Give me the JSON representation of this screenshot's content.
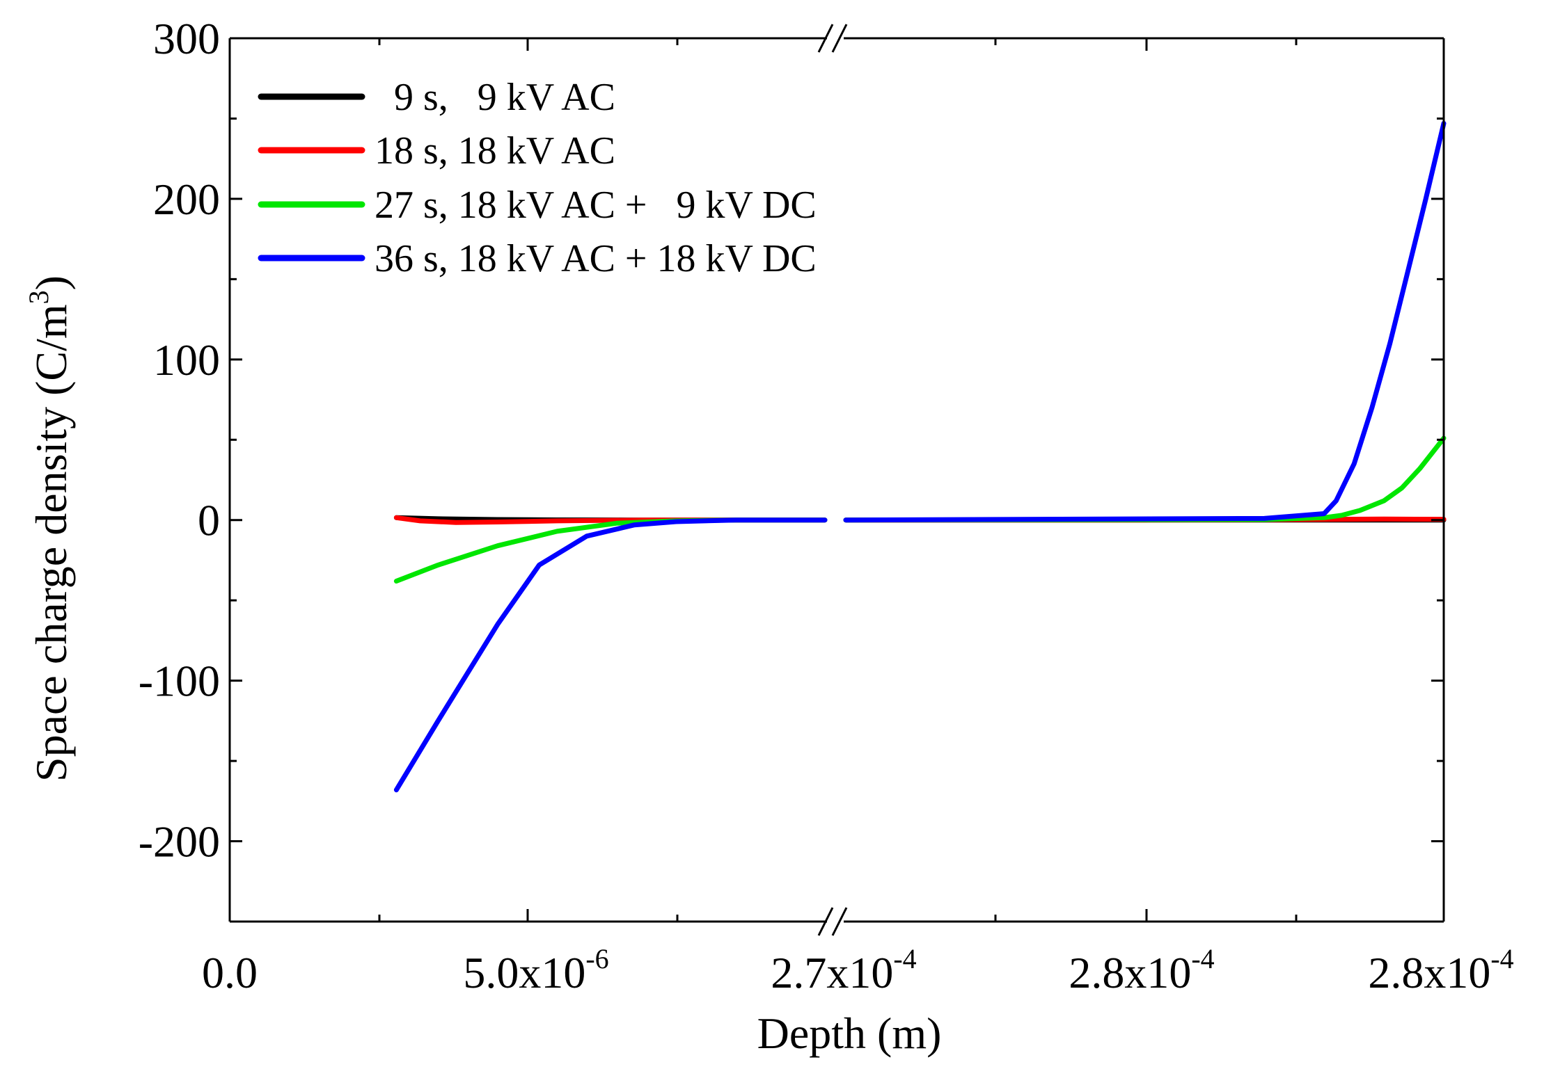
{
  "chart_data": {
    "type": "line",
    "title": "",
    "xlabel": "Depth (m)",
    "ylabel": "Space charge density (C/m",
    "ylabel_sup": "3",
    "ylabel_close": ")",
    "ylim": [
      -250,
      300
    ],
    "yticks": [
      -200,
      -100,
      0,
      100,
      200,
      300
    ],
    "ytick_labels": [
      "-200",
      "-100",
      "0",
      "100",
      "200",
      "300"
    ],
    "axis_break": "broken x-axis between the left and right segments",
    "xtick_labels": [
      {
        "base": "0.0",
        "exp": ""
      },
      {
        "base": "5.0x10",
        "exp": "-6"
      },
      {
        "base": "2.7x10",
        "exp": "-4"
      },
      {
        "base": "2.8x10",
        "exp": "-4"
      },
      {
        "base": "2.8x10",
        "exp": "-4"
      }
    ],
    "segments": [
      {
        "name": "left",
        "xlim": [
          0,
          1e-05
        ]
      },
      {
        "name": "right",
        "xlim": [
          0.00027,
          0.00028
        ]
      }
    ],
    "legend_position": "top-left",
    "series": [
      {
        "name": "9 s, 9 kV AC",
        "legend_label": "  9 s,   9 kV AC",
        "color": "#000000",
        "left": {
          "x": [
            2.8e-06,
            3.5e-06,
            4.5e-06,
            5.5e-06,
            7e-06,
            8.5e-06,
            1e-05
          ],
          "y": [
            1.5,
            0.8,
            0.3,
            0.1,
            0,
            0,
            0
          ]
        },
        "right": {
          "x": [
            0.00027,
            0.000274,
            0.000278,
            0.00028
          ],
          "y": [
            0,
            0,
            0,
            0
          ]
        }
      },
      {
        "name": "18 s, 18 kV AC",
        "legend_label": "18 s, 18 kV AC",
        "color": "#ff0000",
        "left": {
          "x": [
            2.8e-06,
            3.2e-06,
            3.8e-06,
            4.5e-06,
            5.5e-06,
            7e-06,
            1e-05
          ],
          "y": [
            1.5,
            -0.5,
            -1.5,
            -1.2,
            -0.5,
            0,
            0
          ]
        },
        "right": {
          "x": [
            0.00027,
            0.000275,
            0.000277,
            0.000278,
            0.000279,
            0.00028
          ],
          "y": [
            0,
            0,
            0.2,
            0.4,
            0.6,
            0.5
          ]
        }
      },
      {
        "name": "27 s, 18 kV AC + 9 kV DC",
        "legend_label": "27 s, 18 kV AC +   9 kV DC",
        "color": "#00e600",
        "left": {
          "x": [
            2.8e-06,
            3.5e-06,
            4.5e-06,
            5.5e-06,
            6.5e-06,
            7.5e-06,
            8.5e-06,
            1e-05
          ],
          "y": [
            -38,
            -28,
            -16,
            -7,
            -2,
            -0.5,
            0,
            0
          ]
        },
        "right": {
          "x": [
            0.00027,
            0.000277,
            0.000278,
            0.0002783,
            0.0002786,
            0.000279,
            0.0002793,
            0.0002796,
            0.00028
          ],
          "y": [
            0,
            0.3,
            1.5,
            3,
            6,
            12,
            20,
            32,
            51
          ]
        }
      },
      {
        "name": "36 s, 18 kV AC + 18 kV DC",
        "legend_label": "36 s, 18 kV AC + 18 kV DC",
        "color": "#0000ff",
        "left": {
          "x": [
            2.8e-06,
            3.5e-06,
            4.5e-06,
            5.2e-06,
            6e-06,
            6.8e-06,
            7.5e-06,
            8.5e-06,
            1e-05
          ],
          "y": [
            -168,
            -125,
            -65,
            -28,
            -10,
            -3,
            -1,
            0,
            0
          ]
        },
        "right": {
          "x": [
            0.00027,
            0.000277,
            0.000278,
            0.0002782,
            0.0002785,
            0.0002788,
            0.0002791,
            0.0002794,
            0.0002797,
            0.00028
          ],
          "y": [
            0,
            1,
            4,
            12,
            35,
            70,
            110,
            155,
            200,
            247
          ]
        }
      }
    ]
  }
}
